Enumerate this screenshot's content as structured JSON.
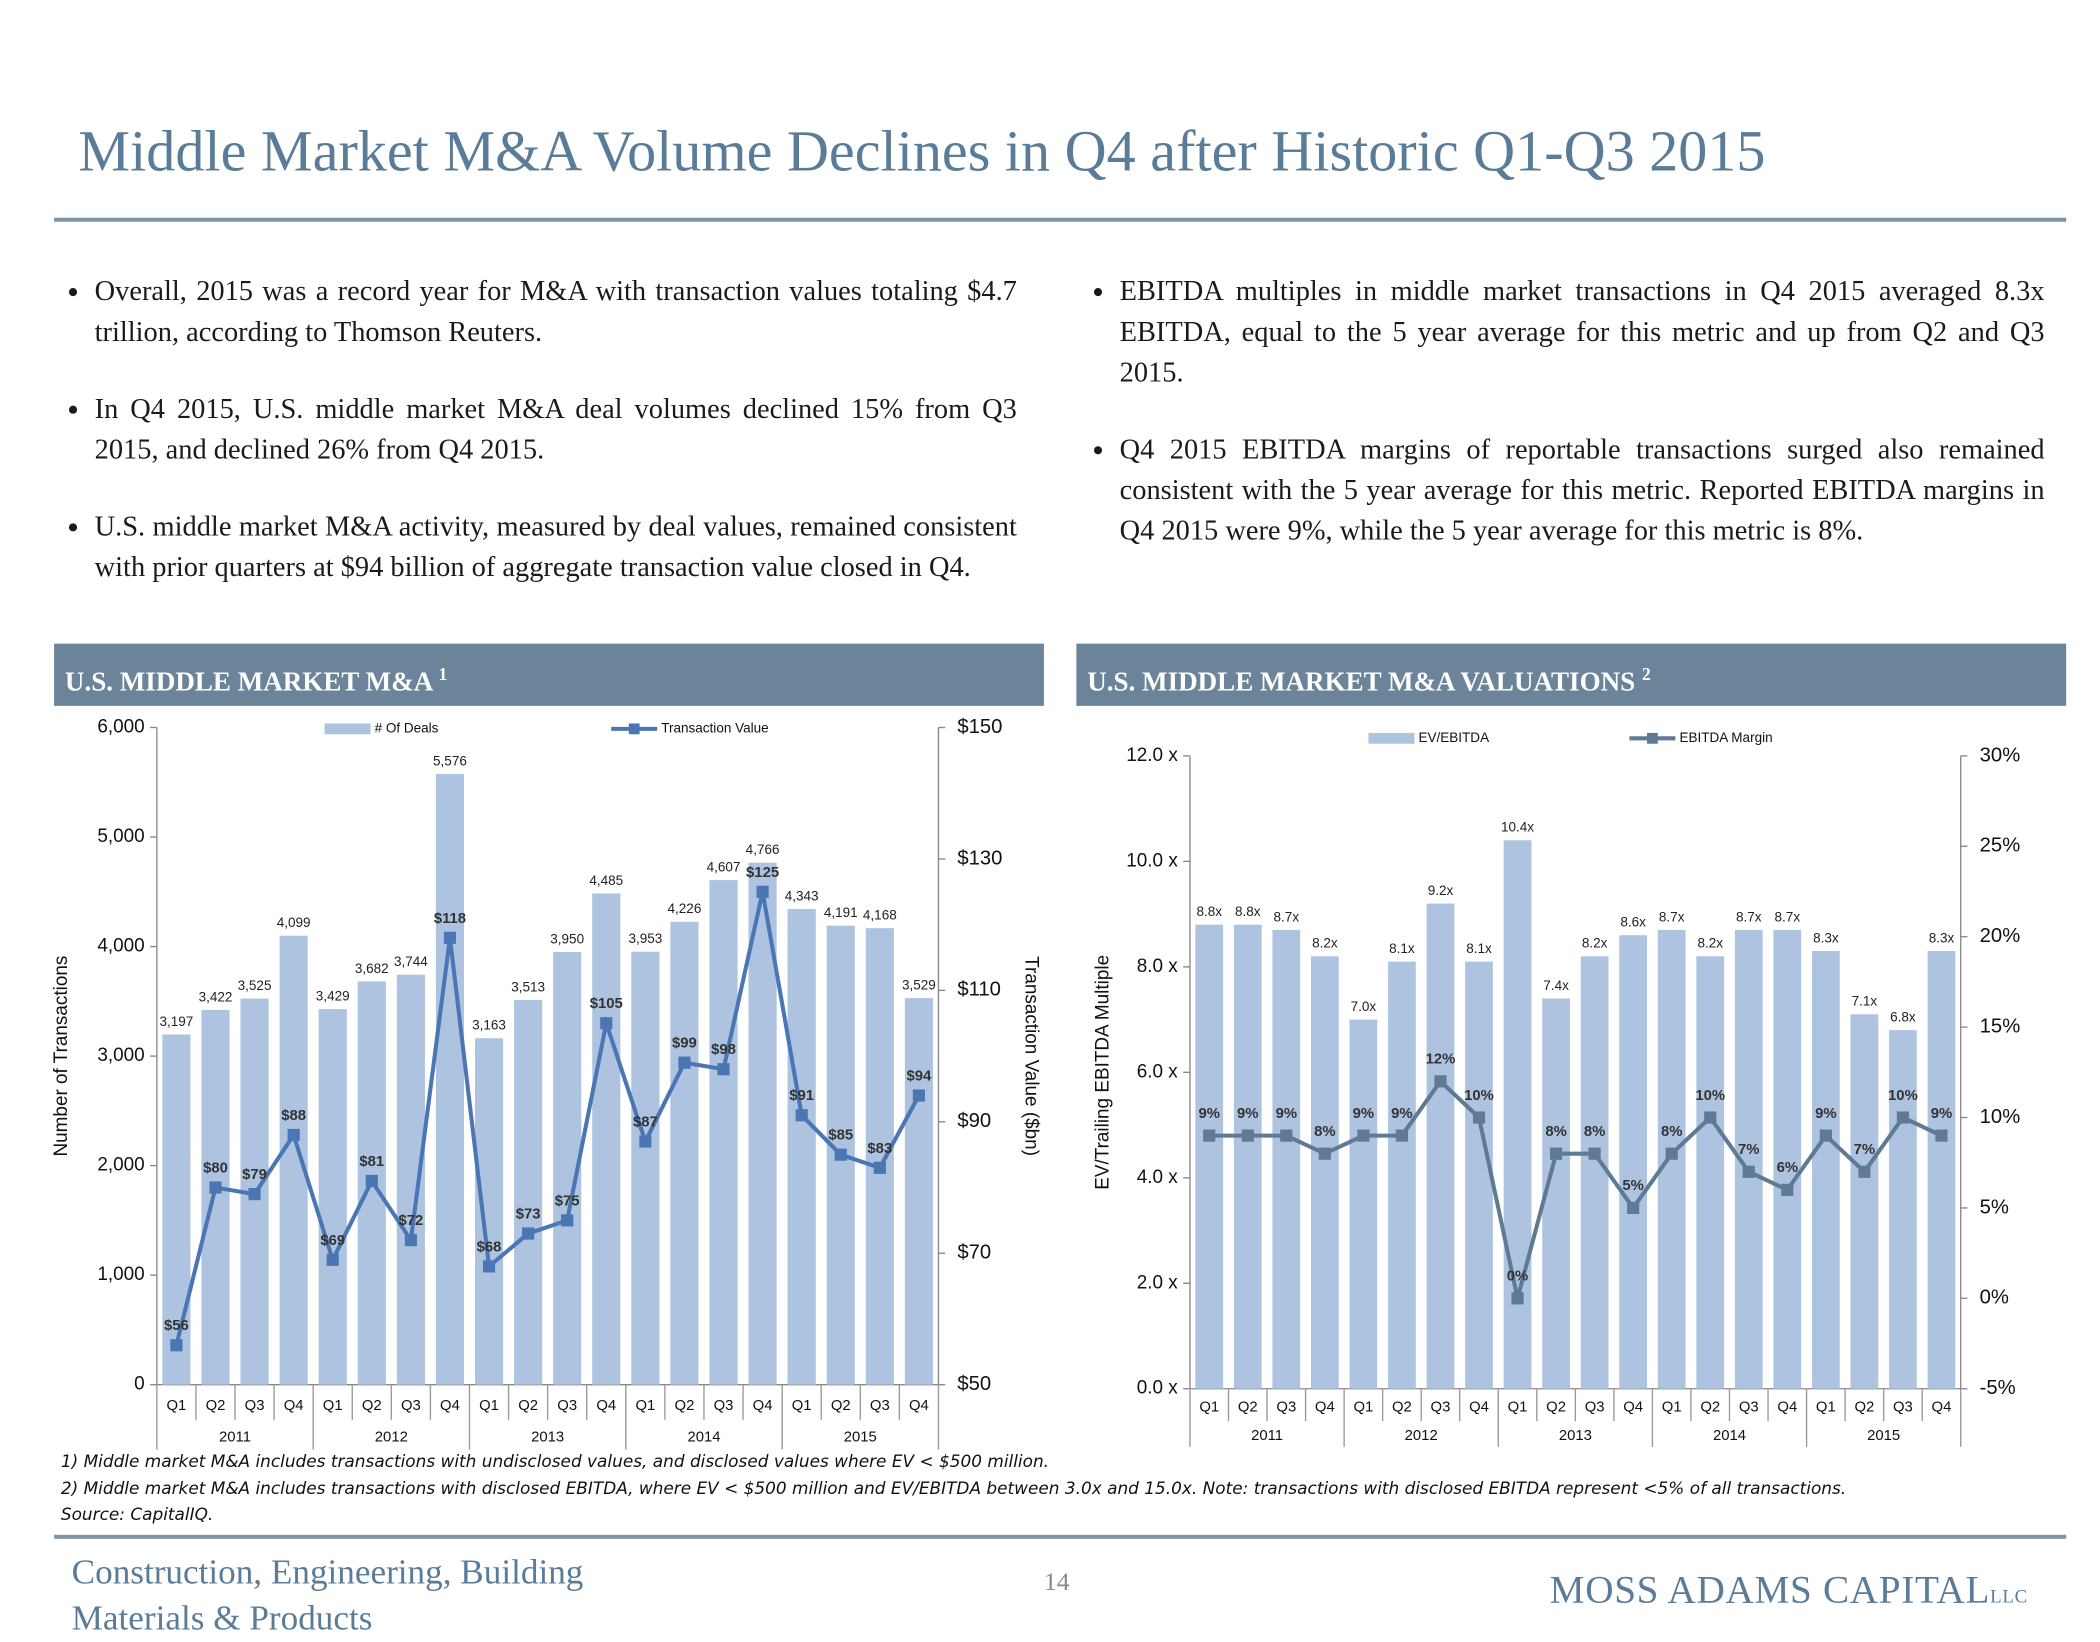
{
  "title": "Middle Market M&A Volume Declines in Q4 after Historic Q1-Q3 2015",
  "bullets_left": [
    "Overall, 2015 was a record year for M&A with transaction values totaling $4.7 trillion, according to Thomson Reuters.",
    "In Q4 2015, U.S. middle market M&A deal volumes declined 15% from Q3 2015, and declined 26% from Q4 2015.",
    "U.S. middle market M&A activity, measured by deal values, remained consistent with prior quarters at $94 billion of aggregate transaction value closed in Q4."
  ],
  "bullets_right": [
    "EBITDA multiples in middle market transactions in Q4 2015 averaged 8.3x EBITDA, equal to the 5 year average for this metric and up from Q2 and Q3 2015.",
    "Q4 2015 EBITDA margins of reportable transactions surged also remained consistent with the 5 year average for this metric. Reported EBITDA margins in Q4 2015 were 9%, while the 5 year average for this metric is 8%."
  ],
  "headers": [
    {
      "text": "U.S. MIDDLE MARKET M&A",
      "note": "1"
    },
    {
      "text": "U.S. MIDDLE MARKET M&A VALUATIONS",
      "note": "2"
    }
  ],
  "chart_data": [
    {
      "type": "combo",
      "y_label": "Number of Transactions",
      "y2_label": "Transaction Value ($bn)",
      "categories": [
        "Q1",
        "Q2",
        "Q3",
        "Q4",
        "Q1",
        "Q2",
        "Q3",
        "Q4",
        "Q1",
        "Q2",
        "Q3",
        "Q4",
        "Q1",
        "Q2",
        "Q3",
        "Q4",
        "Q1",
        "Q2",
        "Q3",
        "Q4"
      ],
      "groups": [
        "2011",
        "2012",
        "2013",
        "2014",
        "2015"
      ],
      "series": [
        {
          "name": "# Of Deals",
          "type": "bar",
          "color": "#adc3e0",
          "values": [
            3197,
            3422,
            3525,
            4099,
            3429,
            3682,
            3744,
            5576,
            3163,
            3513,
            3950,
            4485,
            3953,
            4226,
            4607,
            4766,
            4343,
            4191,
            4168,
            3529
          ],
          "value_labels": [
            "3,197",
            "3,422",
            "3,525",
            "4,099",
            "3,429",
            "3,682",
            "3,744",
            "5,576",
            "3,163",
            "3,513",
            "3,950",
            "4,485",
            "3,953",
            "4,226",
            "4,607",
            "4,766",
            "4,343",
            "4,191",
            "4,168",
            "3,529"
          ]
        },
        {
          "name": "Transaction Value",
          "type": "line",
          "axis": "y2",
          "color": "#4a77b4",
          "values": [
            56,
            80,
            79,
            88,
            69,
            81,
            72,
            118,
            68,
            73,
            75,
            105,
            87,
            99,
            98,
            125,
            91,
            85,
            83,
            94
          ],
          "value_labels": [
            "$56",
            "$80",
            "$79",
            "$88",
            "$69",
            "$81",
            "$72",
            "$118",
            "$68",
            "$73",
            "$75",
            "$105",
            "$87",
            "$99",
            "$98",
            "$125",
            "$91",
            "$85",
            "$83",
            "$94"
          ]
        }
      ],
      "ylim": [
        0,
        6000
      ],
      "yticks": [
        0,
        {
          "value": 1000,
          "label": "1,000"
        },
        {
          "value": 2000,
          "label": "2,000"
        },
        {
          "value": 3000,
          "label": "3,000"
        },
        {
          "value": 4000,
          "label": "4,000"
        },
        {
          "value": 5000,
          "label": "5,000"
        },
        {
          "value": 6000,
          "label": "6,000"
        }
      ],
      "y2lim": [
        50,
        150
      ],
      "y2ticks": [
        {
          "value": 50,
          "label": "$50"
        },
        {
          "value": 70,
          "label": "$70"
        },
        {
          "value": 90,
          "label": "$90"
        },
        {
          "value": 110,
          "label": "$110"
        },
        {
          "value": 130,
          "label": "$130"
        },
        {
          "value": 150,
          "label": "$150"
        }
      ],
      "grid": false,
      "legend": "top"
    },
    {
      "type": "combo",
      "y_label": "EV/Trailing EBITDA Multiple",
      "categories": [
        "Q1",
        "Q2",
        "Q3",
        "Q4",
        "Q1",
        "Q2",
        "Q3",
        "Q4",
        "Q1",
        "Q2",
        "Q3",
        "Q4",
        "Q1",
        "Q2",
        "Q3",
        "Q4",
        "Q1",
        "Q2",
        "Q3",
        "Q4"
      ],
      "groups": [
        "2011",
        "2012",
        "2013",
        "2014",
        "2015"
      ],
      "series": [
        {
          "name": "EV/EBITDA",
          "type": "bar",
          "color": "#adc3e0",
          "values": [
            8.8,
            8.8,
            8.7,
            8.2,
            7.0,
            8.1,
            9.2,
            8.1,
            10.4,
            7.4,
            8.2,
            8.6,
            8.7,
            8.2,
            8.7,
            8.7,
            8.3,
            7.1,
            6.8,
            8.3
          ],
          "value_labels": [
            "8.8x",
            "8.8x",
            "8.7x",
            "8.2x",
            "7.0x",
            "8.1x",
            "9.2x",
            "8.1x",
            "10.4x",
            "7.4x",
            "8.2x",
            "8.6x",
            "8.7x",
            "8.2x",
            "8.7x",
            "8.7x",
            "8.3x",
            "7.1x",
            "6.8x",
            "8.3x"
          ]
        },
        {
          "name": "EBITDA Margin",
          "type": "line",
          "axis": "y2",
          "color": "#5f7a94",
          "values": [
            9,
            9,
            9,
            8,
            9,
            9,
            12,
            10,
            0,
            8,
            8,
            5,
            8,
            10,
            7,
            6,
            9,
            7,
            10,
            9
          ],
          "value_labels": [
            "9%",
            "9%",
            "9%",
            "8%",
            "9%",
            "9%",
            "12%",
            "10%",
            "0%",
            "8%",
            "8%",
            "5%",
            "8%",
            "10%",
            "7%",
            "6%",
            "9%",
            "7%",
            "10%",
            "9%"
          ]
        }
      ],
      "ylim": [
        0,
        12
      ],
      "yticks": [
        {
          "value": 0,
          "label": "0.0 x"
        },
        {
          "value": 2,
          "label": "2.0 x"
        },
        {
          "value": 4,
          "label": "4.0 x"
        },
        {
          "value": 6,
          "label": "6.0 x"
        },
        {
          "value": 8,
          "label": "8.0 x"
        },
        {
          "value": 10,
          "label": "10.0 x"
        },
        {
          "value": 12,
          "label": "12.0 x"
        }
      ],
      "y2lim": [
        -5,
        30
      ],
      "y2ticks": [
        {
          "value": -5,
          "label": "-5%"
        },
        {
          "value": 0,
          "label": "0%"
        },
        {
          "value": 5,
          "label": "5%"
        },
        {
          "value": 10,
          "label": "10%"
        },
        {
          "value": 15,
          "label": "15%"
        },
        {
          "value": 20,
          "label": "20%"
        },
        {
          "value": 25,
          "label": "25%"
        },
        {
          "value": 30,
          "label": "30%"
        }
      ],
      "grid": false,
      "legend": "top"
    }
  ],
  "footnotes": [
    "1) Middle market M&A includes transactions with undisclosed values, and disclosed values where EV < $500 million.",
    "2) Middle market M&A includes transactions with disclosed EBITDA, where EV < $500 million and EV/EBITDA between 3.0x and 15.0x.  Note: transactions with disclosed EBITDA represent  <5% of all transactions.",
    "Source: CapitalIQ."
  ],
  "footer": [
    "Construction, Engineering, Building",
    "Materials & Products"
  ],
  "page_number": "14",
  "logo": {
    "name": "MOSS ADAMS CAPITAL",
    "suffix": "LLC"
  }
}
